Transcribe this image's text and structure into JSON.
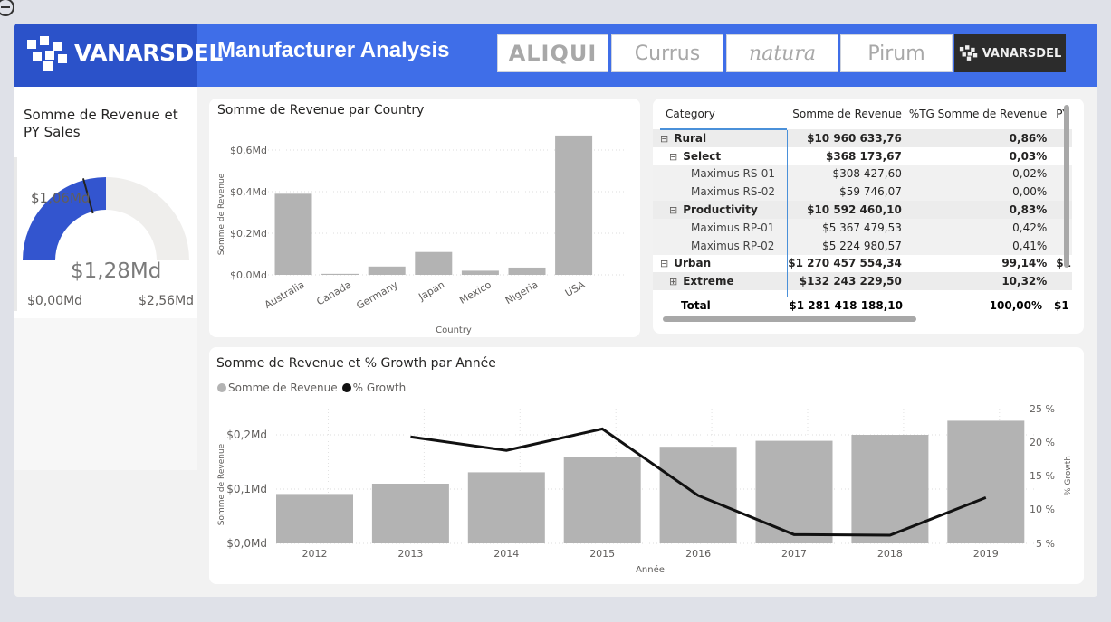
{
  "header": {
    "logo_text": "VANARSDEL",
    "title": "Manufacturer Analysis",
    "brands": [
      {
        "label": "ALIQUI",
        "active": false
      },
      {
        "label": "Currus",
        "active": false
      },
      {
        "label": "natura",
        "active": false
      },
      {
        "label": "Pirum",
        "active": false
      },
      {
        "label": "VANARSDEL",
        "active": true
      }
    ]
  },
  "gauge": {
    "title": "Somme de Revenue et PY Sales",
    "value_label": "$1,28Md",
    "target_label": "$1,06Md",
    "min_label": "$0,00Md",
    "max_label": "$2,56Md",
    "value": 1.28,
    "target": 1.06,
    "min": 0,
    "max": 2.56,
    "fill_color": "#3355cf",
    "track_color": "#efeeec"
  },
  "country_chart": {
    "title": "Somme de Revenue par Country",
    "xlabel": "Country",
    "ylabel": "Somme de Revenue",
    "y_ticks": [
      "$0,0Md",
      "$0,2Md",
      "$0,4Md",
      "$0,6Md"
    ]
  },
  "matrix": {
    "columns": [
      "Category",
      "Somme de Revenue",
      "%TG Somme de Revenue",
      "PY"
    ],
    "rows": [
      {
        "label": "Rural",
        "expander": "⊟",
        "level": 0,
        "bold": true,
        "revenue": "$10 960 633,76",
        "pct": "0,86%",
        "extra": ""
      },
      {
        "label": "Select",
        "expander": "⊟",
        "level": 1,
        "bold": true,
        "revenue": "$368 173,67",
        "pct": "0,03%",
        "extra": ""
      },
      {
        "label": "Maximus RS-01",
        "expander": "",
        "level": 2,
        "bold": false,
        "revenue": "$308 427,60",
        "pct": "0,02%",
        "extra": ""
      },
      {
        "label": "Maximus RS-02",
        "expander": "",
        "level": 2,
        "bold": false,
        "revenue": "$59 746,07",
        "pct": "0,00%",
        "extra": ""
      },
      {
        "label": "Productivity",
        "expander": "⊟",
        "level": 1,
        "bold": true,
        "revenue": "$10 592 460,10",
        "pct": "0,83%",
        "extra": ""
      },
      {
        "label": "Maximus RP-01",
        "expander": "",
        "level": 2,
        "bold": false,
        "revenue": "$5 367 479,53",
        "pct": "0,42%",
        "extra": ""
      },
      {
        "label": "Maximus RP-02",
        "expander": "",
        "level": 2,
        "bold": false,
        "revenue": "$5 224 980,57",
        "pct": "0,41%",
        "extra": ""
      },
      {
        "label": "Urban",
        "expander": "⊟",
        "level": 0,
        "bold": true,
        "revenue": "$1 270 457 554,34",
        "pct": "99,14%",
        "extra": "$1"
      },
      {
        "label": "Extreme",
        "expander": "⊞",
        "level": 1,
        "bold": true,
        "revenue": "$132 243 229,50",
        "pct": "10,32%",
        "extra": ""
      }
    ],
    "total": {
      "label": "Total",
      "revenue": "$1 281 418 188,10",
      "pct": "100,00%",
      "extra": "$1"
    }
  },
  "year_chart": {
    "title": "Somme de Revenue et % Growth par Année",
    "legend": [
      {
        "label": "Somme de Revenue",
        "color": "#b3b3b3"
      },
      {
        "label": "% Growth",
        "color": "#111111"
      }
    ],
    "xlabel": "Année",
    "ylabel_left": "Somme de Revenue",
    "ylabel_right": "% Growth",
    "y_ticks_left": [
      "$0,0Md",
      "$0,1Md",
      "$0,2Md"
    ],
    "y_ticks_right": [
      "5 %",
      "10 %",
      "15 %",
      "20 %",
      "25 %"
    ]
  },
  "chart_data": [
    {
      "type": "bar",
      "title": "Somme de Revenue par Country",
      "xlabel": "Country",
      "ylabel": "Somme de Revenue",
      "categories": [
        "Australia",
        "Canada",
        "Germany",
        "Japan",
        "Mexico",
        "Nigeria",
        "USA"
      ],
      "values": [
        0.39,
        0.005,
        0.04,
        0.11,
        0.02,
        0.035,
        0.67
      ],
      "ylim": [
        0,
        0.7
      ],
      "y_unit": "Md $",
      "bar_color": "#b3b3b3",
      "grid": true
    },
    {
      "type": "bar",
      "title": "Somme de Revenue et % Growth par Année",
      "xlabel": "Année",
      "categories": [
        "2012",
        "2013",
        "2014",
        "2015",
        "2016",
        "2017",
        "2018",
        "2019"
      ],
      "series": [
        {
          "name": "Somme de Revenue",
          "type": "bar",
          "axis": "left",
          "values": [
            0.091,
            0.11,
            0.131,
            0.159,
            0.178,
            0.189,
            0.2,
            0.226
          ]
        },
        {
          "name": "% Growth",
          "type": "line",
          "axis": "right",
          "values": [
            null,
            20.8,
            18.8,
            22.0,
            12.1,
            6.3,
            6.2,
            11.8
          ]
        }
      ],
      "ylim_left": [
        0,
        0.25
      ],
      "ylim_right": [
        5,
        25
      ],
      "grid": true,
      "legend_position": "top-left"
    }
  ]
}
